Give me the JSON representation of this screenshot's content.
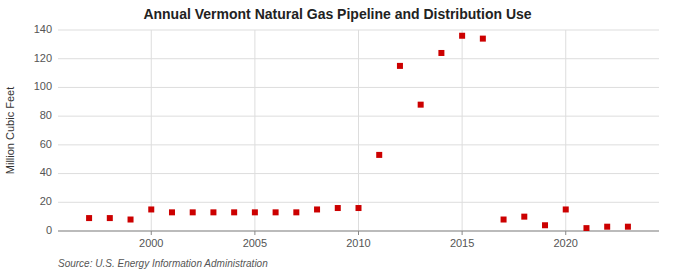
{
  "chart_data": {
    "type": "scatter",
    "title": "Annual Vermont Natural Gas Pipeline and Distribution Use",
    "ylabel": "Million Cubic Feet",
    "annotation": "Source: U.S. Energy Information Administration",
    "x": [
      1997,
      1998,
      1999,
      2000,
      2001,
      2002,
      2003,
      2004,
      2005,
      2006,
      2007,
      2008,
      2009,
      2010,
      2011,
      2012,
      2013,
      2014,
      2015,
      2016,
      2017,
      2018,
      2019,
      2020,
      2021,
      2022,
      2023
    ],
    "values": [
      9,
      9,
      8,
      15,
      13,
      13,
      13,
      13,
      13,
      13,
      13,
      15,
      16,
      16,
      53,
      115,
      88,
      124,
      136,
      134,
      8,
      10,
      4,
      15,
      2,
      3,
      3
    ],
    "color": "#cc0000",
    "marker": "square",
    "xlim": [
      1995.5,
      2024.5
    ],
    "ylim": [
      0,
      140
    ],
    "xticks": [
      2000,
      2005,
      2010,
      2015,
      2020
    ],
    "yticks": [
      0,
      20,
      40,
      60,
      80,
      100,
      120,
      140
    ],
    "grid": true
  }
}
